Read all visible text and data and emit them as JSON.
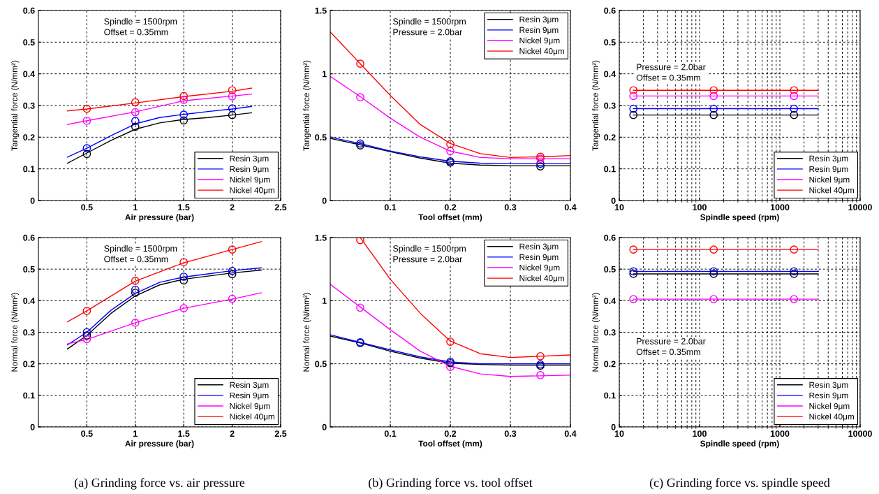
{
  "chart_data": [
    {
      "type": "line",
      "xlabel": "Air pressure (bar)",
      "ylabel": "Tangential force (N/mm²)",
      "xlim": [
        0,
        2.5
      ],
      "xticks": [
        0.5,
        1,
        1.5,
        2,
        2.5
      ],
      "ylim": [
        0,
        0.6
      ],
      "yticks": [
        0,
        0.1,
        0.2,
        0.3,
        0.4,
        0.5,
        0.6
      ],
      "grid": true,
      "legend": "bottom right",
      "annotations": [
        "Spindle = 1500rpm\nOffset = 0.35mm"
      ],
      "series": [
        {
          "name": "Resin 3μm",
          "color": "#000000",
          "x": [
            0.3,
            0.5,
            0.75,
            1.0,
            1.25,
            1.5,
            1.75,
            2.0,
            2.2
          ],
          "values": [
            0.118,
            0.15,
            0.19,
            0.225,
            0.245,
            0.256,
            0.262,
            0.27,
            0.277
          ]
        },
        {
          "name": "Resin 9μm",
          "color": "#0000ff",
          "x": [
            0.3,
            0.5,
            0.75,
            1.0,
            1.25,
            1.5,
            1.75,
            2.0,
            2.2
          ],
          "values": [
            0.137,
            0.165,
            0.205,
            0.242,
            0.262,
            0.272,
            0.281,
            0.289,
            0.297
          ]
        },
        {
          "name": "Nickel 9μm",
          "color": "#ff00ff",
          "x": [
            0.3,
            0.5,
            1.0,
            1.5,
            2.0,
            2.2
          ],
          "values": [
            0.24,
            0.252,
            0.28,
            0.315,
            0.33,
            0.336
          ]
        },
        {
          "name": "Nickel 40μm",
          "color": "#ff0000",
          "x": [
            0.3,
            0.5,
            1.0,
            1.5,
            2.0,
            2.2
          ],
          "values": [
            0.283,
            0.289,
            0.308,
            0.328,
            0.345,
            0.355
          ]
        },
        {
          "type": "scatter",
          "marker": "circle",
          "color": "#000000",
          "x": [
            0.5,
            1,
            1.5,
            2
          ],
          "values": [
            0.147,
            0.233,
            0.253,
            0.27
          ]
        },
        {
          "type": "scatter",
          "marker": "circle",
          "color": "#0000ff",
          "x": [
            0.5,
            1,
            1.5,
            2
          ],
          "values": [
            0.165,
            0.251,
            0.271,
            0.291
          ]
        },
        {
          "type": "scatter",
          "marker": "circle",
          "color": "#ff00ff",
          "x": [
            0.5,
            1,
            1.5,
            2
          ],
          "values": [
            0.252,
            0.279,
            0.318,
            0.329
          ]
        },
        {
          "type": "scatter",
          "marker": "circle",
          "color": "#ff0000",
          "x": [
            0.5,
            1,
            1.5,
            2
          ],
          "values": [
            0.29,
            0.31,
            0.33,
            0.348
          ]
        }
      ]
    },
    {
      "type": "line",
      "xlabel": "Tool offset (mm)",
      "ylabel": "Tangential force (N/mm²)",
      "xlim": [
        0,
        0.4
      ],
      "xticks": [
        0.1,
        0.2,
        0.3,
        0.4
      ],
      "ylim": [
        0,
        1.5
      ],
      "yticks": [
        0,
        0.5,
        1,
        1.5
      ],
      "grid": true,
      "legend": "top right",
      "annotations": [
        "Spindle = 1500rpm\nPressure = 2.0bar"
      ],
      "series": [
        {
          "name": "Resin 3μm",
          "color": "#000000",
          "x": [
            0,
            0.05,
            0.1,
            0.15,
            0.2,
            0.25,
            0.3,
            0.4
          ],
          "values": [
            0.49,
            0.44,
            0.385,
            0.335,
            0.295,
            0.28,
            0.275,
            0.275
          ]
        },
        {
          "name": "Resin 9μm",
          "color": "#0000ff",
          "x": [
            0,
            0.05,
            0.1,
            0.15,
            0.2,
            0.25,
            0.3,
            0.4
          ],
          "values": [
            0.5,
            0.45,
            0.39,
            0.345,
            0.31,
            0.295,
            0.29,
            0.29
          ]
        },
        {
          "name": "Nickel 9μm",
          "color": "#ff00ff",
          "x": [
            0,
            0.05,
            0.1,
            0.15,
            0.2,
            0.25,
            0.3,
            0.4
          ],
          "values": [
            0.98,
            0.82,
            0.65,
            0.5,
            0.39,
            0.34,
            0.33,
            0.33
          ]
        },
        {
          "name": "Nickel 40μm",
          "color": "#ff0000",
          "x": [
            0,
            0.05,
            0.1,
            0.15,
            0.2,
            0.25,
            0.3,
            0.35,
            0.4
          ],
          "values": [
            1.33,
            1.08,
            0.83,
            0.6,
            0.45,
            0.37,
            0.34,
            0.345,
            0.355
          ]
        },
        {
          "type": "scatter",
          "marker": "circle",
          "color": "#000000",
          "x": [
            0.05,
            0.2,
            0.35
          ],
          "values": [
            0.435,
            0.3,
            0.27
          ]
        },
        {
          "type": "scatter",
          "marker": "circle",
          "color": "#0000ff",
          "x": [
            0.05,
            0.2,
            0.35
          ],
          "values": [
            0.45,
            0.31,
            0.29
          ]
        },
        {
          "type": "scatter",
          "marker": "circle",
          "color": "#ff00ff",
          "x": [
            0.05,
            0.2,
            0.35
          ],
          "values": [
            0.815,
            0.39,
            0.33
          ]
        },
        {
          "type": "scatter",
          "marker": "circle",
          "color": "#ff0000",
          "x": [
            0.05,
            0.2,
            0.35
          ],
          "values": [
            1.08,
            0.445,
            0.345
          ]
        }
      ]
    },
    {
      "type": "line",
      "xlabel": "Spindle speed (rpm)",
      "ylabel": "Tangential force (N/mm²)",
      "log": "x",
      "xlim": [
        10,
        10000
      ],
      "xticks": [
        10,
        100,
        1000,
        10000
      ],
      "ylim": [
        0,
        0.6
      ],
      "yticks": [
        0,
        0.1,
        0.2,
        0.3,
        0.4,
        0.5,
        0.6
      ],
      "grid": true,
      "legend": "bottom right",
      "annotations": [
        "Pressure = 2.0bar\nOffset = 0.35mm"
      ],
      "series": [
        {
          "name": "Resin 3μm",
          "color": "#000000",
          "x": [
            15,
            3000
          ],
          "values": [
            0.27,
            0.27
          ]
        },
        {
          "name": "Resin 9μm",
          "color": "#0000ff",
          "x": [
            15,
            3000
          ],
          "values": [
            0.29,
            0.29
          ]
        },
        {
          "name": "Nickel 9μm",
          "color": "#ff00ff",
          "x": [
            15,
            3000
          ],
          "values": [
            0.33,
            0.33
          ]
        },
        {
          "name": "Nickel 40μm",
          "color": "#ff0000",
          "x": [
            15,
            3000
          ],
          "values": [
            0.348,
            0.348
          ]
        },
        {
          "type": "scatter",
          "marker": "circle",
          "color": "#000000",
          "x": [
            15,
            150,
            1500
          ],
          "values": [
            0.27,
            0.27,
            0.27
          ]
        },
        {
          "type": "scatter",
          "marker": "circle",
          "color": "#0000ff",
          "x": [
            15,
            150,
            1500
          ],
          "values": [
            0.29,
            0.29,
            0.29
          ]
        },
        {
          "type": "scatter",
          "marker": "circle",
          "color": "#ff00ff",
          "x": [
            15,
            150,
            1500
          ],
          "values": [
            0.33,
            0.33,
            0.33
          ]
        },
        {
          "type": "scatter",
          "marker": "circle",
          "color": "#ff0000",
          "x": [
            15,
            150,
            1500
          ],
          "values": [
            0.348,
            0.348,
            0.348
          ]
        }
      ]
    },
    {
      "type": "line",
      "xlabel": "Air pressure (bar)",
      "ylabel": "Normal force (N/mm²)",
      "xlim": [
        0,
        2.5
      ],
      "xticks": [
        0.5,
        1,
        1.5,
        2,
        2.5
      ],
      "ylim": [
        0,
        0.6
      ],
      "yticks": [
        0,
        0.1,
        0.2,
        0.3,
        0.4,
        0.5,
        0.6
      ],
      "grid": true,
      "legend": "bottom right",
      "annotations": [
        "Spindle = 1500rpm\nOffset = 0.35mm",
        "(a) Grinding force vs. air pressure"
      ],
      "series": [
        {
          "name": "Resin 3μm",
          "color": "#000000",
          "x": [
            0.3,
            0.5,
            0.75,
            1.0,
            1.25,
            1.5,
            1.75,
            2.0,
            2.3
          ],
          "values": [
            0.247,
            0.29,
            0.36,
            0.415,
            0.45,
            0.468,
            0.478,
            0.488,
            0.497
          ]
        },
        {
          "name": "Resin 9μm",
          "color": "#0000ff",
          "x": [
            0.3,
            0.5,
            0.75,
            1.0,
            1.25,
            1.5,
            1.75,
            2.0,
            2.3
          ],
          "values": [
            0.26,
            0.3,
            0.37,
            0.423,
            0.458,
            0.475,
            0.485,
            0.495,
            0.504
          ]
        },
        {
          "name": "Nickel 9μm",
          "color": "#ff00ff",
          "x": [
            0.3,
            0.5,
            1.0,
            1.5,
            2.0,
            2.3
          ],
          "values": [
            0.263,
            0.277,
            0.33,
            0.376,
            0.405,
            0.425
          ]
        },
        {
          "name": "Nickel 40μm",
          "color": "#ff0000",
          "x": [
            0.3,
            0.5,
            1.0,
            1.5,
            2.0,
            2.3
          ],
          "values": [
            0.333,
            0.368,
            0.462,
            0.52,
            0.562,
            0.587
          ]
        },
        {
          "type": "scatter",
          "marker": "circle",
          "color": "#000000",
          "x": [
            0.5,
            1,
            1.5,
            2
          ],
          "values": [
            0.29,
            0.425,
            0.464,
            0.484
          ]
        },
        {
          "type": "scatter",
          "marker": "circle",
          "color": "#0000ff",
          "x": [
            0.5,
            1,
            1.5,
            2
          ],
          "values": [
            0.3,
            0.435,
            0.476,
            0.494
          ]
        },
        {
          "type": "scatter",
          "marker": "circle",
          "color": "#ff00ff",
          "x": [
            0.5,
            1,
            1.5,
            2
          ],
          "values": [
            0.278,
            0.33,
            0.376,
            0.406
          ]
        },
        {
          "type": "scatter",
          "marker": "circle",
          "color": "#ff0000",
          "x": [
            0.5,
            1,
            1.5,
            2
          ],
          "values": [
            0.368,
            0.463,
            0.522,
            0.562
          ]
        }
      ]
    },
    {
      "type": "line",
      "xlabel": "Tool offset (mm)",
      "ylabel": "Normal force (N/mm²)",
      "xlim": [
        0,
        0.4
      ],
      "xticks": [
        0.1,
        0.2,
        0.3,
        0.4
      ],
      "ylim": [
        0,
        1.5
      ],
      "yticks": [
        0,
        0.5,
        1,
        1.5
      ],
      "grid": true,
      "legend": "top right",
      "annotations": [
        "Spindle = 1500rpm\nPressure = 2.0bar",
        "(b) Grinding force vs. tool offset"
      ],
      "series": [
        {
          "name": "Resin 3μm",
          "color": "#000000",
          "x": [
            0,
            0.05,
            0.1,
            0.15,
            0.2,
            0.25,
            0.3,
            0.4
          ],
          "values": [
            0.72,
            0.665,
            0.6,
            0.545,
            0.505,
            0.495,
            0.49,
            0.49
          ]
        },
        {
          "name": "Resin 9μm",
          "color": "#0000ff",
          "x": [
            0,
            0.05,
            0.1,
            0.15,
            0.2,
            0.25,
            0.3,
            0.4
          ],
          "values": [
            0.73,
            0.67,
            0.61,
            0.555,
            0.515,
            0.5,
            0.5,
            0.5
          ]
        },
        {
          "name": "Nickel 9μm",
          "color": "#ff00ff",
          "x": [
            0,
            0.05,
            0.1,
            0.15,
            0.2,
            0.25,
            0.3,
            0.35,
            0.4
          ],
          "values": [
            1.13,
            0.95,
            0.77,
            0.6,
            0.48,
            0.42,
            0.4,
            0.405,
            0.41
          ]
        },
        {
          "name": "Nickel 40μm",
          "color": "#ff0000",
          "x": [
            0.05,
            0.1,
            0.15,
            0.2,
            0.25,
            0.3,
            0.35,
            0.4
          ],
          "values": [
            1.5,
            1.17,
            0.9,
            0.68,
            0.58,
            0.55,
            0.56,
            0.57
          ]
        },
        {
          "type": "scatter",
          "marker": "circle",
          "color": "#000000",
          "x": [
            0.05,
            0.2,
            0.35
          ],
          "values": [
            0.665,
            0.505,
            0.485
          ]
        },
        {
          "type": "scatter",
          "marker": "circle",
          "color": "#0000ff",
          "x": [
            0.05,
            0.2,
            0.35
          ],
          "values": [
            0.67,
            0.515,
            0.495
          ]
        },
        {
          "type": "scatter",
          "marker": "circle",
          "color": "#ff00ff",
          "x": [
            0.05,
            0.2,
            0.35
          ],
          "values": [
            0.945,
            0.475,
            0.41
          ]
        },
        {
          "type": "scatter",
          "marker": "circle",
          "color": "#ff0000",
          "x": [
            0.05,
            0.2,
            0.35
          ],
          "values": [
            1.48,
            0.675,
            0.56
          ]
        }
      ]
    },
    {
      "type": "line",
      "xlabel": "Spindle speed (rpm)",
      "ylabel": "Normal force (N/mm²)",
      "log": "x",
      "xlim": [
        10,
        10000
      ],
      "xticks": [
        10,
        100,
        1000,
        10000
      ],
      "ylim": [
        0,
        0.6
      ],
      "yticks": [
        0,
        0.1,
        0.2,
        0.3,
        0.4,
        0.5,
        0.6
      ],
      "grid": true,
      "legend": "bottom right",
      "annotations": [
        "Pressure = 2.0bar\nOffset = 0.35mm",
        "(c) Grinding force vs. spindle speed"
      ],
      "series": [
        {
          "name": "Resin 3μm",
          "color": "#000000",
          "x": [
            15,
            3000
          ],
          "values": [
            0.485,
            0.485
          ]
        },
        {
          "name": "Resin 9μm",
          "color": "#0000ff",
          "x": [
            15,
            3000
          ],
          "values": [
            0.493,
            0.493
          ]
        },
        {
          "name": "Nickel 9μm",
          "color": "#ff00ff",
          "x": [
            15,
            3000
          ],
          "values": [
            0.405,
            0.405
          ]
        },
        {
          "name": "Nickel 40μm",
          "color": "#ff0000",
          "x": [
            15,
            3000
          ],
          "values": [
            0.562,
            0.562
          ]
        },
        {
          "type": "scatter",
          "marker": "circle",
          "color": "#000000",
          "x": [
            15,
            150,
            1500
          ],
          "values": [
            0.485,
            0.485,
            0.485
          ]
        },
        {
          "type": "scatter",
          "marker": "circle",
          "color": "#0000ff",
          "x": [
            15,
            150,
            1500
          ],
          "values": [
            0.493,
            0.493,
            0.493
          ]
        },
        {
          "type": "scatter",
          "marker": "circle",
          "color": "#ff00ff",
          "x": [
            15,
            150,
            1500
          ],
          "values": [
            0.405,
            0.405,
            0.405
          ]
        },
        {
          "type": "scatter",
          "marker": "circle",
          "color": "#ff0000",
          "x": [
            15,
            150,
            1500
          ],
          "values": [
            0.562,
            0.562,
            0.562
          ]
        }
      ]
    }
  ]
}
